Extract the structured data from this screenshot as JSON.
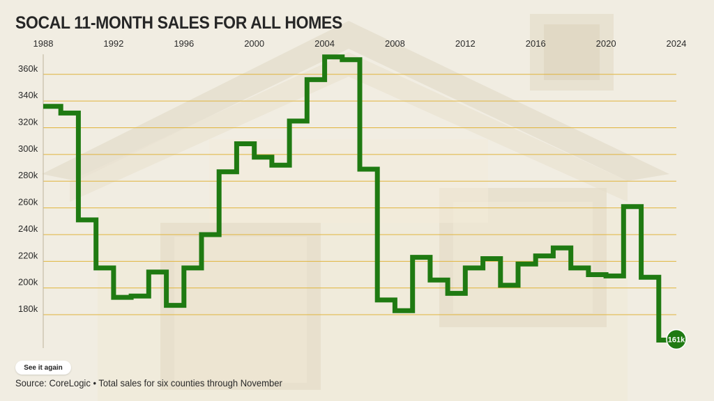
{
  "title": "SOCAL 11-MONTH SALES FOR ALL HOMES",
  "source_note": "Source: CoreLogic • Total sales for six counties through November",
  "replay_label": "See it again",
  "colors": {
    "line": "#1f7a12",
    "grid": "#e0b43c",
    "badge_fill": "#1f7a12",
    "badge_text": "#ffffff",
    "text": "#2a2a2a"
  },
  "chart_data": {
    "type": "line",
    "step": true,
    "x_axis_position": "top",
    "x_ticks": [
      1988,
      1992,
      1996,
      2000,
      2004,
      2008,
      2012,
      2016,
      2020,
      2024
    ],
    "xlim": [
      1988,
      2024
    ],
    "ylim": [
      155000,
      375000
    ],
    "y_ticks": [
      180000,
      200000,
      220000,
      240000,
      260000,
      280000,
      300000,
      320000,
      340000,
      360000
    ],
    "y_tick_labels": [
      "180k",
      "200k",
      "220k",
      "240k",
      "260k",
      "280k",
      "300k",
      "320k",
      "340k",
      "360k"
    ],
    "grid": true,
    "end_label": "161k",
    "series": [
      {
        "x": [
          1988,
          1989,
          1990,
          1991,
          1992,
          1993,
          1994,
          1995,
          1996,
          1997,
          1998,
          1999,
          2000,
          2001,
          2002,
          2003,
          2004,
          2005,
          2006,
          2007,
          2008,
          2009,
          2010,
          2011,
          2012,
          2013,
          2014,
          2015,
          2016,
          2017,
          2018,
          2019,
          2020,
          2021,
          2022,
          2023
        ],
        "values": [
          336000,
          331000,
          251000,
          215000,
          193000,
          194000,
          212000,
          187000,
          215000,
          240000,
          287000,
          308000,
          298000,
          292000,
          325000,
          356000,
          373000,
          371000,
          289000,
          191000,
          183000,
          223000,
          206000,
          196000,
          215000,
          222000,
          202000,
          218000,
          224000,
          230000,
          215000,
          210000,
          209000,
          261000,
          208000,
          161000
        ]
      }
    ]
  }
}
